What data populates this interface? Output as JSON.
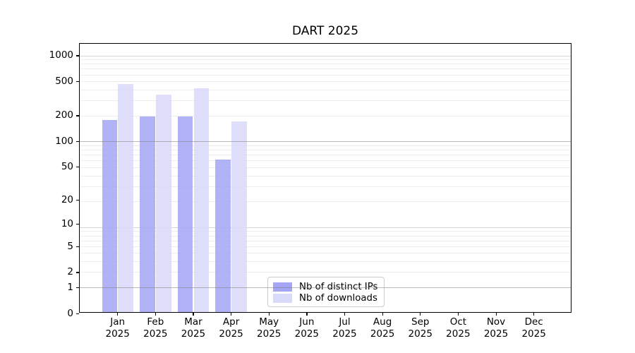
{
  "title": "DART 2025",
  "chart_data": {
    "type": "bar",
    "title": "DART 2025",
    "y_scale": "log10(value+1)",
    "y_ticks": [
      0,
      1,
      2,
      5,
      10,
      20,
      50,
      100,
      200,
      500,
      1000
    ],
    "y_top_value": 1400,
    "grid": {
      "horizontal": true,
      "minor_log_lines": true,
      "vertical": false
    },
    "x_year": "2025",
    "categories": [
      "Jan",
      "Feb",
      "Mar",
      "Apr",
      "May",
      "Jun",
      "Jul",
      "Aug",
      "Sep",
      "Oct",
      "Nov",
      "Dec"
    ],
    "series": [
      {
        "name": "Nb of distinct IPs",
        "color": "#a5a5f5",
        "values": [
          175,
          195,
          195,
          60,
          null,
          null,
          null,
          null,
          null,
          null,
          null,
          null
        ]
      },
      {
        "name": "Nb of downloads",
        "color": "#d9d9fa",
        "values": [
          465,
          350,
          415,
          170,
          null,
          null,
          null,
          null,
          null,
          null,
          null,
          null
        ]
      }
    ],
    "legend": {
      "position": "inside-bottom-center",
      "items": [
        "Nb of distinct IPs",
        "Nb of downloads"
      ]
    }
  },
  "colors": {
    "spine": "#000000",
    "grid_minor": "#ececec",
    "grid_medium": "#d6d6d6",
    "grid_strong": "#b0b0b0",
    "legend_border": "#cccccc"
  }
}
